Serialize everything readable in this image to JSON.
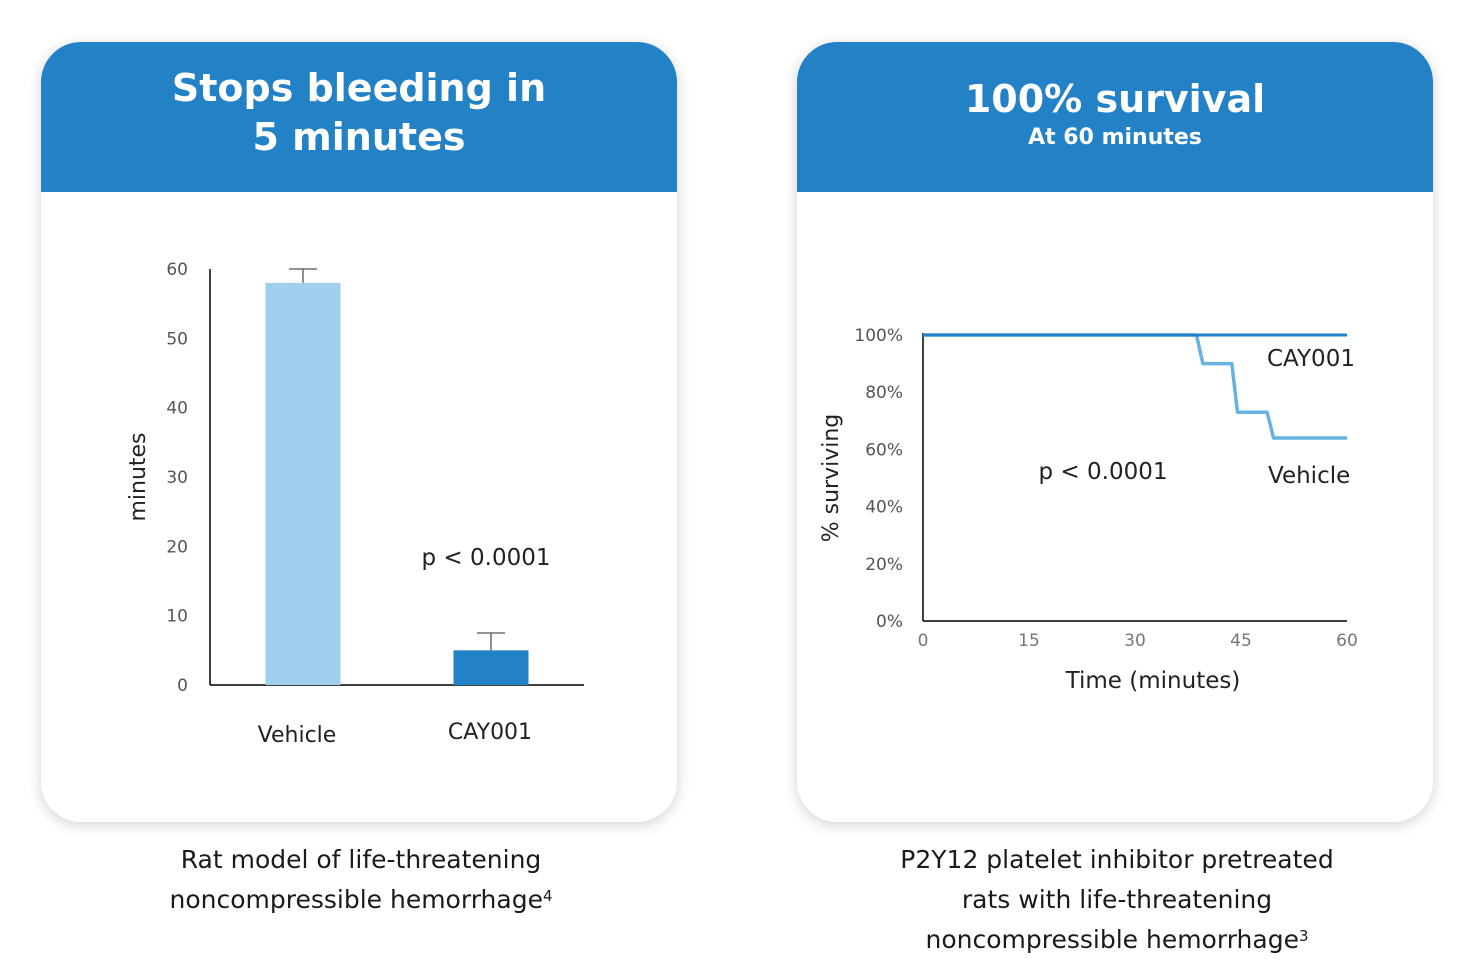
{
  "panels": {
    "left": {
      "title_line1": "Stops bleeding in",
      "title_line2": "5 minutes",
      "caption_line1": "Rat model of life-threatening",
      "caption_line2": "noncompressible hemorrhage",
      "caption_ref": "4"
    },
    "right": {
      "title": "100% survival",
      "subtitle": "At 60 minutes",
      "caption_line1": "P2Y12 platelet inhibitor pretreated",
      "caption_line2": "rats with life-threatening",
      "caption_line3": "noncompressible hemorrhage",
      "caption_ref": "3"
    }
  },
  "colors": {
    "header": "#2381c6",
    "vehicle_bar": "#9fcfee",
    "cay001_bar": "#2381c6",
    "cay001_line": "#2381c6",
    "vehicle_line": "#67b1e3"
  },
  "chart_data": [
    {
      "type": "bar",
      "categories": [
        "Vehicle",
        "CAY001"
      ],
      "values": [
        58,
        5
      ],
      "error": [
        2,
        2.5
      ],
      "ylabel": "minutes",
      "xlabel": "",
      "ylim": [
        0,
        60
      ],
      "yticks": [
        0,
        10,
        20,
        30,
        40,
        50,
        60
      ],
      "annotation": "p < 0.0001"
    },
    {
      "type": "line",
      "xlabel": "Time (minutes)",
      "ylabel": "% surviving",
      "xlim": [
        0,
        60
      ],
      "ylim": [
        0,
        100
      ],
      "xticks": [
        0,
        15,
        30,
        45,
        60
      ],
      "yticks": [
        0,
        20,
        40,
        60,
        80,
        100
      ],
      "ytick_labels": [
        "0%",
        "20%",
        "40%",
        "60%",
        "80%",
        "100%"
      ],
      "annotation": "p < 0.0001",
      "series": [
        {
          "name": "CAY001",
          "x": [
            0,
            60
          ],
          "y": [
            100,
            100
          ]
        },
        {
          "name": "Vehicle",
          "x": [
            0,
            38.7,
            39.6,
            43.7,
            44.5,
            48.7,
            49.6,
            60
          ],
          "y": [
            100,
            100,
            90,
            90,
            73,
            73,
            64,
            64
          ]
        }
      ]
    }
  ]
}
